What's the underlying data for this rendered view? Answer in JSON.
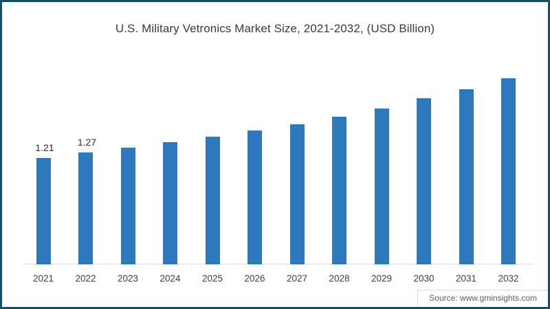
{
  "title": "U.S. Military Vetronics Market Size, 2021-2032, (USD Billion)",
  "source": "Source: www.gminsights.com",
  "colors": {
    "bar": "#2E79BE",
    "frame_border": "#124F68",
    "baseline": "#dcdcdc",
    "title_text": "#3a3a3a",
    "tick_text": "#3c3c3c",
    "source_text": "#5c5c5c"
  },
  "chart_data": {
    "type": "bar",
    "title": "U.S. Military Vetronics Market Size, 2021-2032, (USD Billion)",
    "xlabel": "",
    "ylabel": "USD Billion",
    "categories": [
      "2021",
      "2022",
      "2023",
      "2024",
      "2025",
      "2026",
      "2027",
      "2028",
      "2029",
      "2030",
      "2031",
      "2032"
    ],
    "values": [
      1.21,
      1.27,
      1.33,
      1.39,
      1.45,
      1.52,
      1.59,
      1.68,
      1.77,
      1.89,
      1.99,
      2.12
    ],
    "data_labels": [
      "1.21",
      "1.27",
      null,
      null,
      null,
      null,
      null,
      null,
      null,
      null,
      null,
      null
    ],
    "ylim": [
      0,
      2.3
    ],
    "grid": false,
    "legend": false,
    "axis_line": "x-only"
  }
}
